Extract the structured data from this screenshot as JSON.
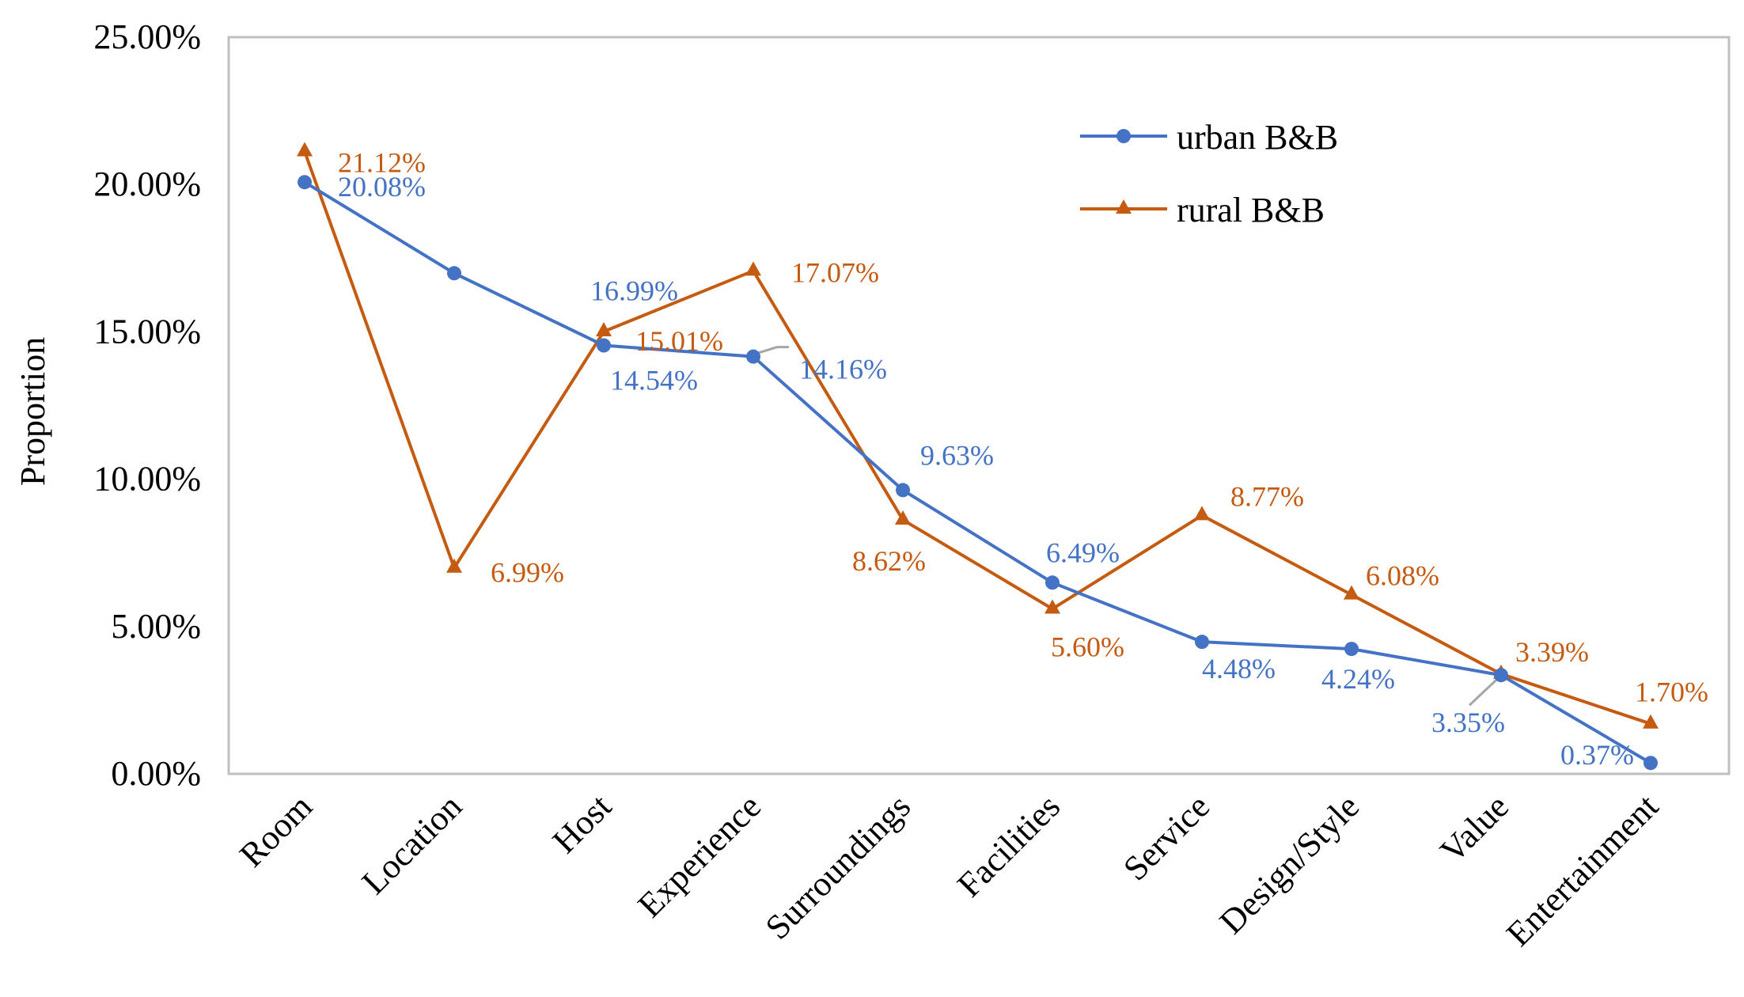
{
  "chart_data": {
    "type": "line",
    "title": "",
    "xlabel": "",
    "ylabel": "Proportion",
    "ylim": [
      0,
      25
    ],
    "yticks": [
      0,
      5,
      10,
      15,
      20,
      25
    ],
    "ytick_labels": [
      "0.00%",
      "5.00%",
      "10.00%",
      "15.00%",
      "20.00%",
      "25.00%"
    ],
    "categories": [
      "Room",
      "Location",
      "Host",
      "Experience",
      "Surroundings",
      "Facilities",
      "Service",
      "Design/Style",
      "Value",
      "Entertainment"
    ],
    "legend_position": "top-right",
    "series": [
      {
        "name": "urban B&B",
        "color": "#4472C4",
        "marker": "circle",
        "values": [
          20.08,
          16.99,
          14.54,
          14.16,
          9.63,
          6.49,
          4.48,
          4.24,
          3.35,
          0.37
        ],
        "labels": [
          "20.08%",
          "16.99%",
          "14.54%",
          "14.16%",
          "9.63%",
          "6.49%",
          "4.48%",
          "4.24%",
          "3.35%",
          "0.37%"
        ]
      },
      {
        "name": "rural B&B",
        "color": "#C55A11",
        "marker": "triangle",
        "values": [
          21.12,
          6.99,
          15.01,
          17.07,
          8.62,
          5.6,
          8.77,
          6.08,
          3.39,
          1.7
        ],
        "labels": [
          "21.12%",
          "6.99%",
          "15.01%",
          "17.07%",
          "8.62%",
          "5.60%",
          "8.77%",
          "6.08%",
          "3.39%",
          "1.70%"
        ]
      }
    ]
  }
}
